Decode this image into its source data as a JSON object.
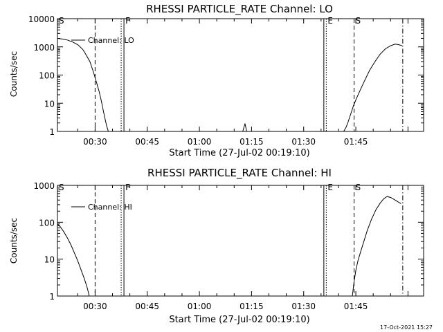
{
  "timestamp": "17-Oct-2021 15:27",
  "chart_data": [
    {
      "type": "line",
      "title": "RHESSI PARTICLE_RATE Channel: LO",
      "xlabel": "Start Time (27-Jul-02 00:19:10)",
      "ylabel": "Counts/sec",
      "yscale": "log",
      "ylim": [
        1,
        10000
      ],
      "xlim_minutes": [
        19.17,
        124.5
      ],
      "x_ticks": [
        {
          "value": 30,
          "label": "00:30"
        },
        {
          "value": 45,
          "label": "00:45"
        },
        {
          "value": 60,
          "label": "01:00"
        },
        {
          "value": 75,
          "label": "01:15"
        },
        {
          "value": 90,
          "label": "01:30"
        },
        {
          "value": 105,
          "label": "01:45"
        }
      ],
      "y_ticks": [
        {
          "value": 1,
          "label": "1"
        },
        {
          "value": 10,
          "label": "10"
        },
        {
          "value": 100,
          "label": "100"
        },
        {
          "value": 1000,
          "label": "1000"
        },
        {
          "value": 10000,
          "label": "10000"
        }
      ],
      "legend": {
        "label": "Channel: LO",
        "placement": "top-left"
      },
      "grid": false,
      "series": [
        {
          "name": "Channel: LO",
          "segments": [
            [
              [
                19.2,
                2000
              ],
              [
                20.5,
                1900
              ],
              [
                22,
                1750
              ],
              [
                23.5,
                1500
              ],
              [
                25,
                1200
              ],
              [
                26.5,
                800
              ],
              [
                27.5,
                500
              ],
              [
                28.5,
                300
              ],
              [
                29.5,
                130
              ],
              [
                30.5,
                50
              ],
              [
                31.2,
                25
              ],
              [
                31.8,
                12
              ],
              [
                32.3,
                6
              ],
              [
                32.8,
                3
              ],
              [
                33.3,
                1.6
              ],
              [
                33.8,
                1
              ],
              [
                34.3,
                1
              ]
            ],
            [
              [
                72.5,
                1
              ],
              [
                73.1,
                1.9
              ],
              [
                73.6,
                1
              ]
            ],
            [
              [
                101.5,
                1
              ],
              [
                102.2,
                1.4
              ],
              [
                102.8,
                2.2
              ],
              [
                103.5,
                4
              ],
              [
                104.3,
                8
              ],
              [
                105.2,
                15
              ],
              [
                106.3,
                30
              ],
              [
                107.7,
                70
              ],
              [
                109,
                150
              ],
              [
                110.5,
                300
              ],
              [
                112,
                550
              ],
              [
                113.5,
                850
              ],
              [
                115,
                1100
              ],
              [
                116.3,
                1250
              ],
              [
                117.3,
                1200
              ],
              [
                118.3,
                1100
              ]
            ]
          ]
        }
      ],
      "markers": [
        {
          "label": "S",
          "x": 19.17,
          "style": "dashed"
        },
        {
          "label": "",
          "x": 30,
          "style": "dashed"
        },
        {
          "label": "",
          "x": 37.5,
          "style": "dotted"
        },
        {
          "label": "F",
          "x": 38.3,
          "style": "solid"
        },
        {
          "label": "",
          "x": 95.8,
          "style": "solid"
        },
        {
          "label": "E",
          "x": 96.5,
          "style": "dotted"
        },
        {
          "label": "S",
          "x": 104.5,
          "style": "dashed"
        },
        {
          "label": "",
          "x": 118.5,
          "style": "dashdot"
        }
      ]
    },
    {
      "type": "line",
      "title": "RHESSI PARTICLE_RATE Channel: HI",
      "xlabel": "Start Time (27-Jul-02 00:19:10)",
      "ylabel": "Counts/sec",
      "yscale": "log",
      "ylim": [
        1,
        1000
      ],
      "xlim_minutes": [
        19.17,
        124.5
      ],
      "x_ticks": [
        {
          "value": 30,
          "label": "00:30"
        },
        {
          "value": 45,
          "label": "00:45"
        },
        {
          "value": 60,
          "label": "01:00"
        },
        {
          "value": 75,
          "label": "01:15"
        },
        {
          "value": 90,
          "label": "01:30"
        },
        {
          "value": 105,
          "label": "01:45"
        }
      ],
      "y_ticks": [
        {
          "value": 1,
          "label": "1"
        },
        {
          "value": 10,
          "label": "10"
        },
        {
          "value": 100,
          "label": "100"
        },
        {
          "value": 1000,
          "label": "1000"
        }
      ],
      "legend": {
        "label": "Channel: HI",
        "placement": "top-left"
      },
      "grid": false,
      "series": [
        {
          "name": "Channel: HI",
          "segments": [
            [
              [
                19.2,
                90
              ],
              [
                20,
                75
              ],
              [
                21,
                55
              ],
              [
                22,
                38
              ],
              [
                23,
                25
              ],
              [
                24,
                15
              ],
              [
                25,
                9
              ],
              [
                26,
                5
              ],
              [
                27,
                2.8
              ],
              [
                27.8,
                1.6
              ],
              [
                28.3,
                1
              ]
            ],
            [
              [
                104,
                1
              ],
              [
                104.5,
                2.5
              ],
              [
                105,
                5
              ],
              [
                105.6,
                9
              ],
              [
                106.3,
                15
              ],
              [
                107.3,
                30
              ],
              [
                108.3,
                60
              ],
              [
                109.5,
                120
              ],
              [
                110.8,
                220
              ],
              [
                112,
                330
              ],
              [
                113,
                430
              ],
              [
                114,
                500
              ],
              [
                115,
                470
              ],
              [
                116.3,
                400
              ],
              [
                117.3,
                350
              ],
              [
                118,
                320
              ]
            ]
          ]
        }
      ],
      "markers": [
        {
          "label": "S",
          "x": 19.17,
          "style": "dashed"
        },
        {
          "label": "",
          "x": 30,
          "style": "dashed"
        },
        {
          "label": "",
          "x": 37.5,
          "style": "dotted"
        },
        {
          "label": "F",
          "x": 38.3,
          "style": "solid"
        },
        {
          "label": "",
          "x": 95.8,
          "style": "solid"
        },
        {
          "label": "E",
          "x": 96.5,
          "style": "dotted"
        },
        {
          "label": "S",
          "x": 104.5,
          "style": "dashed"
        },
        {
          "label": "",
          "x": 118.5,
          "style": "dashdot"
        }
      ]
    }
  ]
}
